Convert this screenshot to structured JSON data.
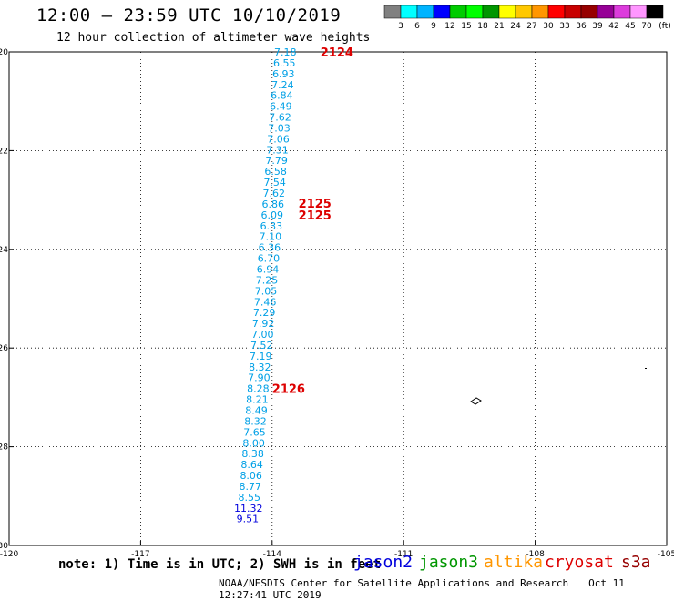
{
  "header": {
    "title": "12:00 – 23:59 UTC 10/10/2019",
    "subtitle": "12 hour collection of altimeter wave heights"
  },
  "legend": {
    "colors": [
      "#808080",
      "#00ffff",
      "#00b4ff",
      "#0000ff",
      "#00cc00",
      "#00ff00",
      "#009600",
      "#ffff00",
      "#ffc800",
      "#ff9600",
      "#ff0000",
      "#c80000",
      "#960000",
      "#960096",
      "#dc3cdc",
      "#ff96ff",
      "#000000"
    ],
    "labels": [
      "3",
      "6",
      "9",
      "12",
      "15",
      "18",
      "21",
      "24",
      "27",
      "30",
      "33",
      "36",
      "39",
      "42",
      "45",
      "70"
    ],
    "unit": "(ft)"
  },
  "note": "note: 1) Time is in UTC; 2) SWH is in feet",
  "missions": [
    {
      "name": "jason2",
      "color": "#0000dd"
    },
    {
      "name": "jason3",
      "color": "#009600"
    },
    {
      "name": "altika",
      "color": "#ff9600"
    },
    {
      "name": "cryosat",
      "color": "#dd0000"
    },
    {
      "name": "s3a",
      "color": "#960000"
    }
  ],
  "footer": {
    "credit": "NOAA/NESDIS Center for Satellite Applications and Research",
    "timestamp": "Oct 11 12:27:41 UTC 2019"
  },
  "chart_data": {
    "type": "scatter",
    "xlim": [
      -120,
      -105
    ],
    "ylim": [
      -30,
      -20
    ],
    "xticks": [
      "-120",
      "-117",
      "-114",
      "-111",
      "-108",
      "-105"
    ],
    "yticks": [
      "-20",
      "-22",
      "-24",
      "-26",
      "-28",
      "-30"
    ],
    "x_tick_values": [
      -120,
      -117,
      -114,
      -111,
      -108,
      -105
    ],
    "y_tick_values": [
      -20,
      -22,
      -24,
      -26,
      -28,
      -30
    ],
    "grid": true,
    "points": [
      {
        "lon": -113.7,
        "lat": -20.0,
        "value": "7.18",
        "color": "#00a0e6"
      },
      {
        "lon": -113.72,
        "lat": -20.22,
        "value": "6.55",
        "color": "#00a0e6"
      },
      {
        "lon": -113.74,
        "lat": -20.44,
        "value": "6.93",
        "color": "#00a0e6"
      },
      {
        "lon": -113.76,
        "lat": -20.66,
        "value": "7.24",
        "color": "#00a0e6"
      },
      {
        "lon": -113.78,
        "lat": -20.88,
        "value": "6.84",
        "color": "#00a0e6"
      },
      {
        "lon": -113.8,
        "lat": -21.1,
        "value": "6.49",
        "color": "#00a0e6"
      },
      {
        "lon": -113.82,
        "lat": -21.32,
        "value": "7.62",
        "color": "#00a0e6"
      },
      {
        "lon": -113.84,
        "lat": -21.54,
        "value": "7.03",
        "color": "#00a0e6"
      },
      {
        "lon": -113.86,
        "lat": -21.76,
        "value": "7.06",
        "color": "#00a0e6"
      },
      {
        "lon": -113.88,
        "lat": -21.98,
        "value": "7.31",
        "color": "#00a0e6"
      },
      {
        "lon": -113.9,
        "lat": -22.2,
        "value": "7.79",
        "color": "#00a0e6"
      },
      {
        "lon": -113.92,
        "lat": -22.42,
        "value": "6.58",
        "color": "#00a0e6"
      },
      {
        "lon": -113.94,
        "lat": -22.64,
        "value": "7.54",
        "color": "#00a0e6"
      },
      {
        "lon": -113.96,
        "lat": -22.86,
        "value": "7.62",
        "color": "#00a0e6"
      },
      {
        "lon": -113.98,
        "lat": -23.08,
        "value": "6.86",
        "color": "#00a0e6"
      },
      {
        "lon": -114.0,
        "lat": -23.3,
        "value": "6.09",
        "color": "#00a0e6"
      },
      {
        "lon": -114.02,
        "lat": -23.52,
        "value": "6.33",
        "color": "#00a0e6"
      },
      {
        "lon": -114.04,
        "lat": -23.74,
        "value": "7.10",
        "color": "#00a0e6"
      },
      {
        "lon": -114.06,
        "lat": -23.96,
        "value": "6.36",
        "color": "#00a0e6"
      },
      {
        "lon": -114.08,
        "lat": -24.18,
        "value": "6.70",
        "color": "#00a0e6"
      },
      {
        "lon": -114.1,
        "lat": -24.4,
        "value": "6.94",
        "color": "#00a0e6"
      },
      {
        "lon": -114.12,
        "lat": -24.62,
        "value": "7.25",
        "color": "#00a0e6"
      },
      {
        "lon": -114.14,
        "lat": -24.84,
        "value": "7.05",
        "color": "#00a0e6"
      },
      {
        "lon": -114.16,
        "lat": -25.06,
        "value": "7.46",
        "color": "#00a0e6"
      },
      {
        "lon": -114.18,
        "lat": -25.28,
        "value": "7.29",
        "color": "#00a0e6"
      },
      {
        "lon": -114.2,
        "lat": -25.5,
        "value": "7.92",
        "color": "#00a0e6"
      },
      {
        "lon": -114.22,
        "lat": -25.72,
        "value": "7.00",
        "color": "#00a0e6"
      },
      {
        "lon": -114.24,
        "lat": -25.94,
        "value": "7.52",
        "color": "#00a0e6"
      },
      {
        "lon": -114.26,
        "lat": -26.16,
        "value": "7.19",
        "color": "#00a0e6"
      },
      {
        "lon": -114.28,
        "lat": -26.38,
        "value": "8.32",
        "color": "#00a0e6"
      },
      {
        "lon": -114.3,
        "lat": -26.6,
        "value": "7.90",
        "color": "#00a0e6"
      },
      {
        "lon": -114.32,
        "lat": -26.82,
        "value": "8.28",
        "color": "#00a0e6"
      },
      {
        "lon": -114.34,
        "lat": -27.04,
        "value": "8.21",
        "color": "#00a0e6"
      },
      {
        "lon": -114.36,
        "lat": -27.26,
        "value": "8.49",
        "color": "#00a0e6"
      },
      {
        "lon": -114.38,
        "lat": -27.48,
        "value": "8.32",
        "color": "#00a0e6"
      },
      {
        "lon": -114.4,
        "lat": -27.7,
        "value": "7.65",
        "color": "#00a0e6"
      },
      {
        "lon": -114.42,
        "lat": -27.92,
        "value": "8.00",
        "color": "#00a0e6"
      },
      {
        "lon": -114.44,
        "lat": -28.14,
        "value": "8.38",
        "color": "#00a0e6"
      },
      {
        "lon": -114.46,
        "lat": -28.36,
        "value": "8.64",
        "color": "#00a0e6"
      },
      {
        "lon": -114.48,
        "lat": -28.58,
        "value": "8.06",
        "color": "#00a0e6"
      },
      {
        "lon": -114.5,
        "lat": -28.8,
        "value": "8.77",
        "color": "#00a0e6"
      },
      {
        "lon": -114.52,
        "lat": -29.02,
        "value": "8.55",
        "color": "#00a0e6"
      },
      {
        "lon": -114.54,
        "lat": -29.24,
        "value": "11.32",
        "color": "#0000dd"
      },
      {
        "lon": -114.56,
        "lat": -29.46,
        "value": "9.51",
        "color": "#0000dd"
      }
    ],
    "pass_labels": [
      {
        "lon": -112.9,
        "lat": -20.0,
        "text": "2124",
        "color": "#dd0000"
      },
      {
        "lon": -113.4,
        "lat": -23.06,
        "text": "2125",
        "color": "#dd0000"
      },
      {
        "lon": -113.4,
        "lat": -23.3,
        "text": "2125",
        "color": "#dd0000"
      },
      {
        "lon": -114.0,
        "lat": -26.82,
        "text": "2126",
        "color": "#dd0000"
      }
    ]
  }
}
